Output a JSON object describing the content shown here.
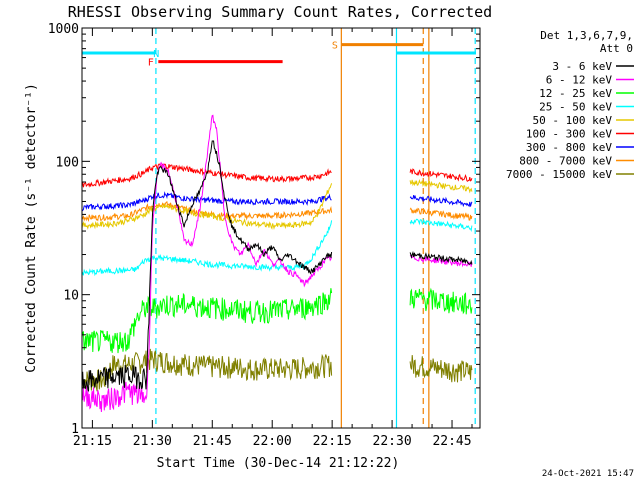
{
  "chart_data": {
    "type": "line",
    "title": "RHESSI Observing Summary Count Rates, Corrected",
    "xlabel": "Start Time (30-Dec-14 21:12:22)",
    "ylabel": "Corrected Count Rate (s⁻¹ detector⁻¹)",
    "y_scale": "log",
    "ylim": [
      1,
      1000
    ],
    "xlim_minutes": [
      12.4,
      112
    ],
    "x_ticks": [
      {
        "minute": 15,
        "label": "21:15"
      },
      {
        "minute": 30,
        "label": "21:30"
      },
      {
        "minute": 45,
        "label": "21:45"
      },
      {
        "minute": 60,
        "label": "22:00"
      },
      {
        "minute": 75,
        "label": "22:15"
      },
      {
        "minute": 90,
        "label": "22:30"
      },
      {
        "minute": 105,
        "label": "22:45"
      }
    ],
    "y_ticks": [
      {
        "value": 1,
        "label": "1"
      },
      {
        "value": 10,
        "label": "10"
      },
      {
        "value": 100,
        "label": "100"
      },
      {
        "value": 1000,
        "label": "1000"
      }
    ],
    "legend_title": [
      "Det 1,3,6,7,9,",
      "Att 0"
    ],
    "legend_position": "right",
    "grid": false,
    "series": [
      {
        "name": "3 - 6 keV",
        "color": "#000000",
        "x": [
          12.4,
          18,
          24,
          28.5,
          29,
          30,
          31,
          32,
          34,
          36,
          38,
          40,
          42,
          44,
          45,
          47,
          48,
          50,
          52,
          54,
          56,
          58,
          60,
          62,
          64,
          66,
          68,
          70,
          72,
          73,
          75
        ],
        "y": [
          2.2,
          2.4,
          2.5,
          2.4,
          5,
          40,
          75,
          90,
          80,
          50,
          33,
          48,
          60,
          90,
          150,
          90,
          55,
          32,
          26,
          22,
          24,
          20,
          23,
          18,
          20,
          18,
          16,
          15,
          17,
          19,
          20
        ],
        "segments": [
          [
            12.4,
            75
          ],
          [
            94.5,
            110
          ]
        ]
      },
      {
        "name": "6 - 12 keV",
        "color": "#ff00ff",
        "x": [
          12.4,
          18,
          24,
          28.5,
          29,
          30,
          31,
          32,
          34,
          36,
          38,
          40,
          42,
          44,
          45,
          46,
          47,
          48,
          50,
          52,
          54,
          56,
          58,
          60,
          62,
          64,
          66,
          68,
          70,
          72,
          73,
          75
        ],
        "y": [
          1.8,
          1.6,
          1.9,
          1.7,
          3,
          30,
          70,
          95,
          85,
          50,
          25,
          24,
          45,
          130,
          220,
          180,
          90,
          40,
          24,
          20,
          24,
          17,
          22,
          17,
          18,
          15,
          14,
          12,
          14,
          16,
          18,
          19
        ],
        "segments": [
          [
            12.4,
            75
          ],
          [
            94.5,
            110
          ]
        ]
      },
      {
        "name": "12 - 25 keV",
        "color": "#00ff00",
        "x": [
          12.4,
          20,
          24,
          26,
          28,
          30,
          33,
          36,
          40,
          45,
          50,
          55,
          60,
          65,
          70,
          72,
          74,
          75
        ],
        "y": [
          4.5,
          4.5,
          4.6,
          6.5,
          8,
          8,
          8.5,
          8.5,
          8.4,
          8.1,
          7.8,
          7.5,
          7.6,
          7.8,
          8.3,
          8.8,
          9.3,
          9.6
        ],
        "segments": [
          [
            12.4,
            75
          ],
          [
            94.5,
            110
          ]
        ]
      },
      {
        "name": "25 - 50 keV",
        "color": "#00ffff",
        "x": [
          12.4,
          18,
          24,
          26,
          28,
          30,
          35,
          40,
          45,
          50,
          55,
          60,
          65,
          68,
          70,
          72,
          74,
          75
        ],
        "y": [
          14.5,
          15,
          15.2,
          15.5,
          18,
          19,
          18.5,
          17.8,
          16.8,
          16.5,
          16.2,
          16,
          16,
          16.5,
          19,
          24,
          30,
          36
        ],
        "segments": [
          [
            12.4,
            75
          ],
          [
            94.5,
            110
          ]
        ]
      },
      {
        "name": "50 - 100 keV",
        "color": "#e6c800",
        "x": [
          12.4,
          20,
          24,
          28,
          30,
          33,
          36,
          40,
          45,
          50,
          55,
          60,
          65,
          70,
          72,
          74,
          75
        ],
        "y": [
          33,
          34,
          36,
          40,
          44,
          46,
          44,
          41,
          39,
          36,
          34,
          33,
          33,
          35,
          44,
          60,
          70
        ],
        "segments": [
          [
            12.4,
            75
          ],
          [
            94.5,
            110
          ]
        ]
      },
      {
        "name": "100 - 300 keV",
        "color": "#ff0000",
        "x": [
          12.4,
          18,
          24,
          28,
          30,
          33,
          36,
          40,
          45,
          50,
          55,
          60,
          65,
          70,
          72,
          74,
          75
        ],
        "y": [
          66,
          70,
          74,
          82,
          90,
          93,
          90,
          86,
          82,
          78,
          75,
          74,
          74,
          76,
          78,
          82,
          84
        ],
        "segments": [
          [
            12.4,
            75
          ],
          [
            94.5,
            110
          ]
        ]
      },
      {
        "name": "300 - 800 keV",
        "color": "#0000ff",
        "x": [
          12.4,
          18,
          24,
          28,
          30,
          33,
          36,
          40,
          45,
          50,
          55,
          60,
          65,
          70,
          72,
          75
        ],
        "y": [
          45,
          46,
          47,
          51,
          55,
          56,
          54,
          52,
          51,
          50,
          50,
          50,
          50,
          50,
          52,
          54
        ],
        "segments": [
          [
            12.4,
            75
          ],
          [
            94.5,
            110
          ]
        ]
      },
      {
        "name": "800 - 7000 keV",
        "color": "#ff8c00",
        "x": [
          12.4,
          18,
          24,
          28,
          30,
          33,
          36,
          40,
          45,
          50,
          55,
          60,
          65,
          70,
          72,
          75
        ],
        "y": [
          38,
          38,
          39,
          44,
          47,
          48,
          46,
          42,
          40,
          39,
          39,
          39,
          40,
          41,
          42,
          43
        ],
        "segments": [
          [
            12.4,
            75
          ],
          [
            94.5,
            110
          ]
        ]
      },
      {
        "name": "7000 - 15000 keV",
        "color": "#808000",
        "x": [
          12.4,
          18,
          20,
          24,
          28,
          30,
          33,
          36,
          40,
          45,
          50,
          55,
          60,
          65,
          70,
          75
        ],
        "y": [
          2.3,
          2.3,
          3,
          3,
          3.2,
          3.3,
          3.2,
          3.1,
          3,
          2.9,
          2.9,
          2.8,
          2.8,
          2.8,
          2.9,
          3
        ],
        "segments": [
          [
            12.4,
            75
          ],
          [
            94.5,
            110
          ]
        ]
      }
    ],
    "flags": [
      {
        "label": "N",
        "color": "#00e5ff",
        "y": 650,
        "label_minute": 31,
        "spans": [
          [
            12.4,
            30.8
          ],
          [
            91.2,
            111
          ]
        ]
      },
      {
        "label": "F",
        "color": "#ff0000",
        "y": 560,
        "label_minute": 29.6,
        "spans": [
          [
            31.5,
            62.6
          ]
        ]
      },
      {
        "label": "S",
        "color": "#f08000",
        "y": 750,
        "label_minute": 75.7,
        "spans": [
          [
            77.4,
            97.8
          ]
        ]
      }
    ],
    "vertical_lines": [
      {
        "minute": 30.9,
        "color": "#00e5ff",
        "style": "dashed"
      },
      {
        "minute": 77.3,
        "color": "#f08000",
        "style": "solid"
      },
      {
        "minute": 91.1,
        "color": "#00e5ff",
        "style": "solid"
      },
      {
        "minute": 97.8,
        "color": "#f08000",
        "style": "dashed"
      },
      {
        "minute": 99.2,
        "color": "#f08000",
        "style": "solid"
      },
      {
        "minute": 110.8,
        "color": "#00e5ff",
        "style": "dashed"
      }
    ],
    "footer_date": "24-Oct-2021 15:47"
  }
}
